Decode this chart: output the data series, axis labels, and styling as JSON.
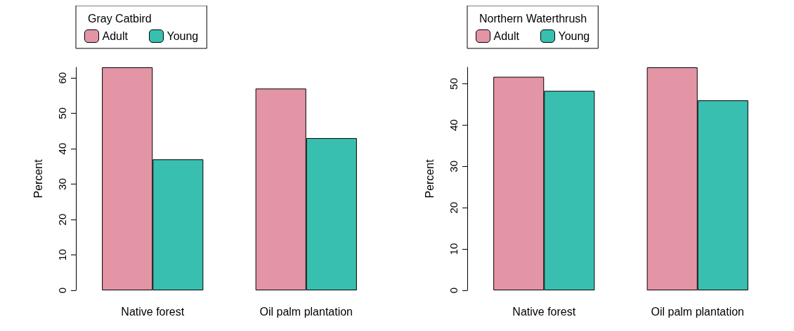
{
  "chart_data": [
    {
      "type": "bar",
      "legend_title": "Gray Catbird",
      "ylabel": "Percent",
      "categories": [
        "Native forest",
        "Oil palm plantation"
      ],
      "series": [
        {
          "name": "Adult",
          "color": "#e495a5",
          "values": [
            63,
            57
          ]
        },
        {
          "name": "Young",
          "color": "#39bfb0",
          "values": [
            37,
            43
          ]
        }
      ],
      "ylim": [
        0,
        63
      ],
      "yticks": [
        0,
        10,
        20,
        30,
        40,
        50,
        60
      ],
      "grid": false,
      "legend": "top left"
    },
    {
      "type": "bar",
      "legend_title": "Northern Waterthrush",
      "ylabel": "Percent",
      "categories": [
        "Native forest",
        "Oil palm plantation"
      ],
      "series": [
        {
          "name": "Adult",
          "color": "#e495a5",
          "values": [
            51.7,
            54
          ]
        },
        {
          "name": "Young",
          "color": "#39bfb0",
          "values": [
            48.3,
            46
          ]
        }
      ],
      "ylim": [
        0,
        54
      ],
      "yticks": [
        0,
        10,
        20,
        30,
        40,
        50
      ],
      "grid": false,
      "legend": "top left"
    }
  ]
}
